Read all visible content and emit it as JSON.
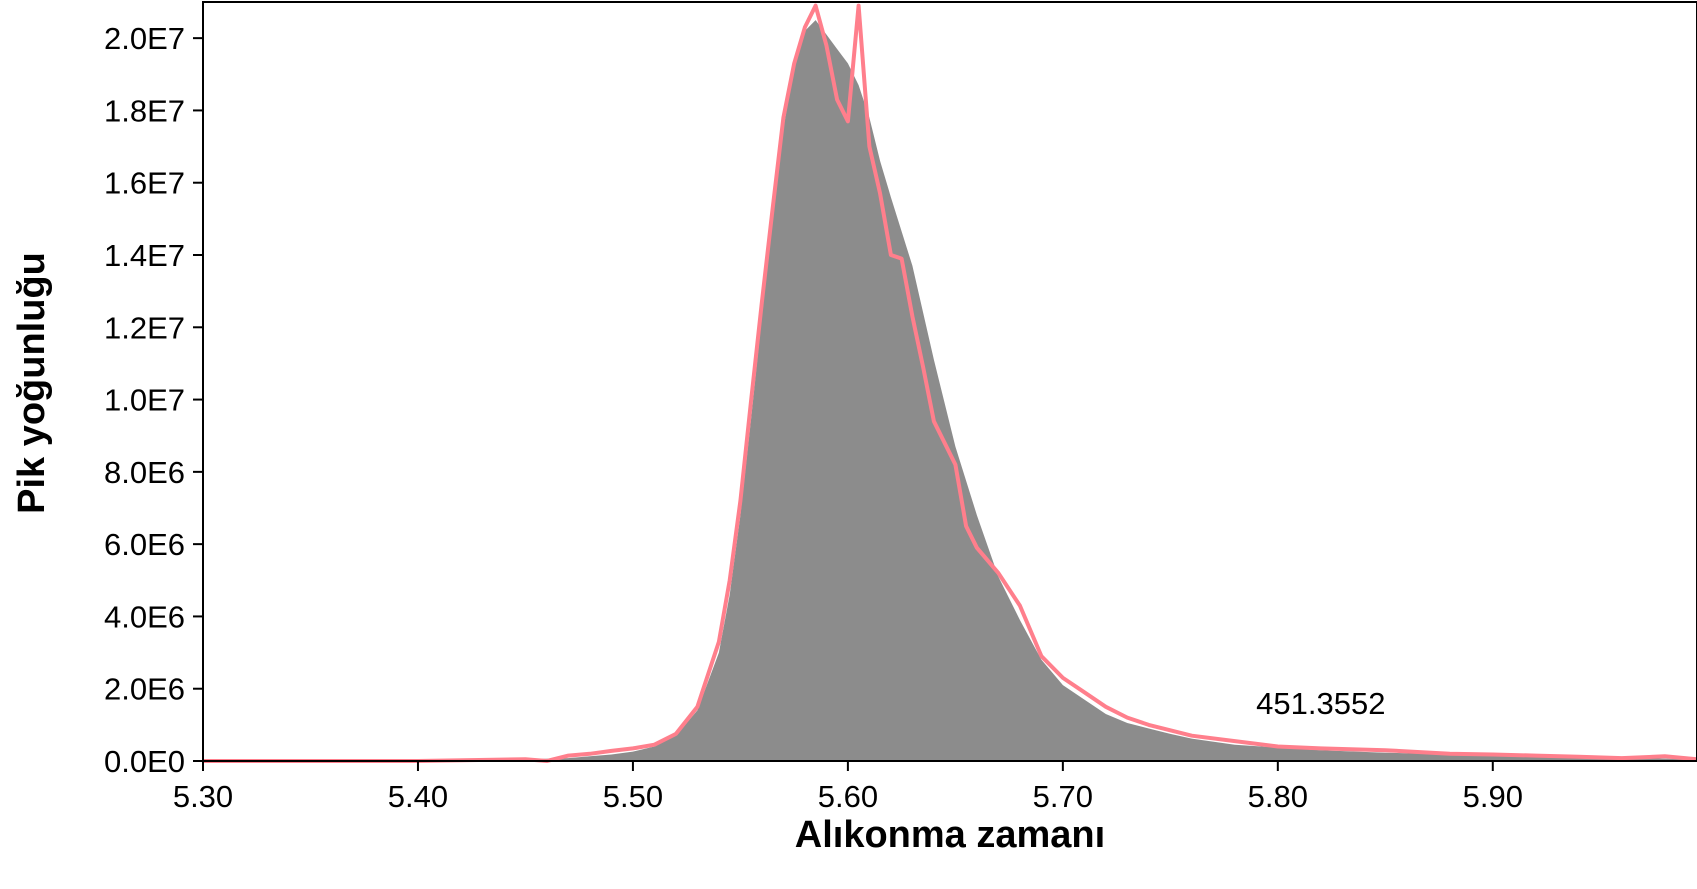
{
  "chart_data": {
    "type": "area",
    "xlabel": "Alıkonma zamanı",
    "ylabel": "Pik yoğunluğu",
    "xlim": [
      5.3,
      5.995
    ],
    "ylim": [
      0,
      21000000
    ],
    "x_ticks": [
      {
        "value": 5.3,
        "label": "5.30"
      },
      {
        "value": 5.4,
        "label": "5.40"
      },
      {
        "value": 5.5,
        "label": "5.50"
      },
      {
        "value": 5.6,
        "label": "5.60"
      },
      {
        "value": 5.7,
        "label": "5.70"
      },
      {
        "value": 5.8,
        "label": "5.80"
      },
      {
        "value": 5.9,
        "label": "5.90"
      }
    ],
    "y_ticks": [
      {
        "value": 0,
        "label": "0.0E0"
      },
      {
        "value": 2000000,
        "label": "2.0E6"
      },
      {
        "value": 4000000,
        "label": "4.0E6"
      },
      {
        "value": 6000000,
        "label": "6.0E6"
      },
      {
        "value": 8000000,
        "label": "8.0E6"
      },
      {
        "value": 10000000,
        "label": "1.0E7"
      },
      {
        "value": 12000000,
        "label": "1.2E7"
      },
      {
        "value": 14000000,
        "label": "1.4E7"
      },
      {
        "value": 16000000,
        "label": "1.6E7"
      },
      {
        "value": 18000000,
        "label": "1.8E7"
      },
      {
        "value": 20000000,
        "label": "2.0E7"
      }
    ],
    "grid": false,
    "annotation": {
      "text": "451.3552",
      "x": 5.82,
      "y": 1300000
    },
    "series": [
      {
        "style": "filled-area",
        "color": "#8c8c8c",
        "x": [
          5.3,
          5.35,
          5.4,
          5.45,
          5.47,
          5.48,
          5.49,
          5.5,
          5.51,
          5.52,
          5.53,
          5.54,
          5.545,
          5.55,
          5.555,
          5.56,
          5.565,
          5.57,
          5.575,
          5.58,
          5.585,
          5.59,
          5.595,
          5.6,
          5.605,
          5.61,
          5.615,
          5.62,
          5.63,
          5.64,
          5.65,
          5.66,
          5.67,
          5.68,
          5.69,
          5.7,
          5.71,
          5.72,
          5.73,
          5.74,
          5.75,
          5.76,
          5.78,
          5.8,
          5.82,
          5.85,
          5.88,
          5.9,
          5.93,
          5.95,
          5.995
        ],
        "values": [
          0,
          0,
          0,
          50000,
          80000,
          130000,
          180000,
          260000,
          400000,
          700000,
          1400000,
          3000000,
          4600000,
          6800000,
          9500000,
          12300000,
          15000000,
          17500000,
          19200000,
          20200000,
          20500000,
          20100000,
          19700000,
          19300000,
          18700000,
          17800000,
          16600000,
          15600000,
          13700000,
          11100000,
          8700000,
          6800000,
          5100000,
          3900000,
          2800000,
          2100000,
          1700000,
          1300000,
          1050000,
          900000,
          750000,
          620000,
          450000,
          370000,
          300000,
          230000,
          180000,
          150000,
          120000,
          100000,
          50000
        ]
      },
      {
        "style": "line",
        "color": "#ff7f8c",
        "x": [
          5.3,
          5.35,
          5.4,
          5.45,
          5.46,
          5.47,
          5.48,
          5.49,
          5.5,
          5.51,
          5.52,
          5.53,
          5.54,
          5.545,
          5.55,
          5.555,
          5.56,
          5.565,
          5.57,
          5.575,
          5.58,
          5.585,
          5.59,
          5.595,
          5.6,
          5.605,
          5.61,
          5.615,
          5.62,
          5.625,
          5.63,
          5.635,
          5.64,
          5.65,
          5.655,
          5.66,
          5.67,
          5.68,
          5.69,
          5.7,
          5.71,
          5.72,
          5.73,
          5.74,
          5.75,
          5.76,
          5.78,
          5.8,
          5.82,
          5.85,
          5.88,
          5.9,
          5.92,
          5.94,
          5.96,
          5.98,
          5.995
        ],
        "values": [
          0,
          0,
          0,
          50000,
          0,
          150000,
          200000,
          280000,
          350000,
          450000,
          750000,
          1500000,
          3300000,
          5000000,
          7200000,
          10000000,
          12700000,
          15300000,
          17800000,
          19300000,
          20300000,
          20900000,
          19800000,
          18300000,
          17700000,
          20900000,
          17000000,
          15700000,
          14000000,
          13900000,
          12300000,
          10900000,
          9400000,
          8200000,
          6500000,
          5900000,
          5200000,
          4300000,
          2900000,
          2300000,
          1900000,
          1500000,
          1200000,
          1000000,
          850000,
          700000,
          550000,
          400000,
          350000,
          300000,
          200000,
          180000,
          150000,
          120000,
          80000,
          130000,
          50000
        ]
      }
    ]
  }
}
